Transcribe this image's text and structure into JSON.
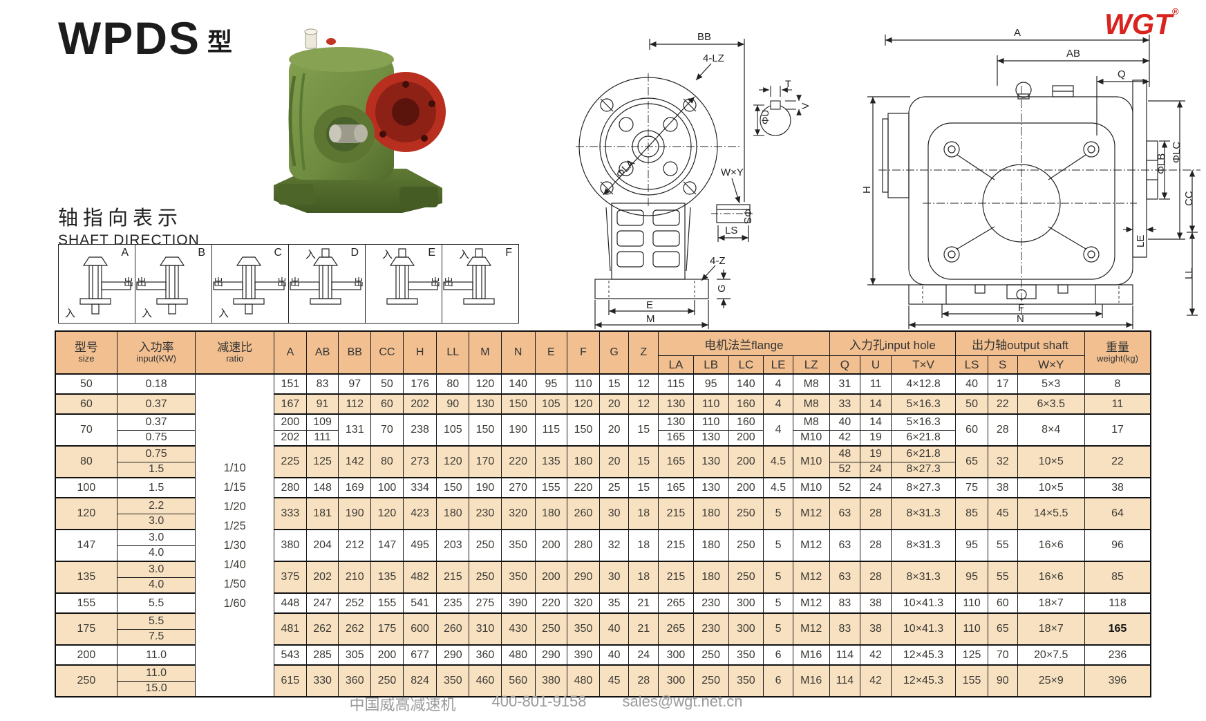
{
  "page": {
    "title": "WPDS",
    "title_suffix": "型",
    "logo_text": "WGT",
    "logo_reg": "®"
  },
  "colors": {
    "brand_red": "#d8231f",
    "table_header_bg": "#f1bf90",
    "table_row_shade": "#f8e1c1",
    "drawing_line": "#222222",
    "photo_body_green": "#6e8b3f",
    "photo_flange_red": "#b92f1f",
    "footer_gray": "#9a9a9a"
  },
  "shaft_direction": {
    "heading_cn": "轴指向表示",
    "heading_en": "SHAFT DIRECTION",
    "in_char": "入",
    "out_char": "出",
    "panels": [
      {
        "label": "A",
        "input": "bottom",
        "outputs": [
          "right"
        ]
      },
      {
        "label": "B",
        "input": "bottom",
        "outputs": [
          "left"
        ]
      },
      {
        "label": "C",
        "input": "bottom",
        "outputs": [
          "left",
          "right"
        ]
      },
      {
        "label": "D",
        "input": "top",
        "outputs": [
          "left",
          "right"
        ]
      },
      {
        "label": "E",
        "input": "top",
        "outputs": [
          "right"
        ]
      },
      {
        "label": "F",
        "input": "top",
        "outputs": [
          "left"
        ]
      }
    ]
  },
  "drawings": {
    "front": {
      "bb": "BB",
      "lz4": "4-LZ",
      "la": "ΦLA",
      "wy": "W×Y",
      "s": "ΦS",
      "ls": "LS",
      "z4": "4-Z",
      "g": "G",
      "e": "E",
      "m": "M"
    },
    "detail": {
      "t": "T",
      "v": "V",
      "u": "ΦU"
    },
    "side": {
      "a": "A",
      "ab": "AB",
      "q": "Q",
      "h": "H",
      "lb": "ΦLB",
      "lc": "ΦLC",
      "le": "LE",
      "cc": "CC",
      "ll": "LL",
      "f": "F",
      "n": "N"
    }
  },
  "table": {
    "headers": {
      "size_cn": "型号",
      "size_en": "size",
      "power_cn": "入功率",
      "power_en": "input(KW)",
      "ratio_cn": "减速比",
      "ratio_en": "ratio",
      "dims": [
        "A",
        "AB",
        "BB",
        "CC",
        "H",
        "LL",
        "M",
        "N",
        "E",
        "F",
        "G",
        "Z"
      ],
      "flange_group": "电机法兰flange",
      "flange_cols": [
        "LA",
        "LB",
        "LC",
        "LE",
        "LZ"
      ],
      "input_group": "入力孔input hole",
      "input_cols": [
        "Q",
        "U",
        "T×V"
      ],
      "output_group": "出力轴output shaft",
      "output_cols": [
        "LS",
        "S",
        "W×Y"
      ],
      "weight_cn": "重量",
      "weight_en": "weight(kg)"
    },
    "ratio_values": [
      "1/10",
      "1/15",
      "1/20",
      "1/25",
      "1/30",
      "1/40",
      "1/50",
      "1/60"
    ],
    "rows": [
      {
        "shade": false,
        "tall": true,
        "gstart": true,
        "cells": [
          "50",
          "0.18",
          {
            "type": "ratio",
            "rs": 19
          },
          "151",
          "83",
          "97",
          "50",
          "176",
          "80",
          "120",
          "140",
          "95",
          "110",
          "15",
          "12",
          "115",
          "95",
          "140",
          "4",
          "M8",
          "31",
          "11",
          "4×12.8",
          "40",
          "17",
          "5×3",
          "8"
        ]
      },
      {
        "shade": true,
        "tall": true,
        "gstart": true,
        "cells": [
          "60",
          "0.37",
          "167",
          "91",
          "112",
          "60",
          "202",
          "90",
          "130",
          "150",
          "105",
          "120",
          "20",
          "12",
          "130",
          "110",
          "160",
          "4",
          "M8",
          "33",
          "14",
          "5×16.3",
          "50",
          "22",
          "6×3.5",
          "11"
        ]
      },
      {
        "shade": false,
        "gstart": true,
        "cells": [
          {
            "v": "70",
            "rs": 2
          },
          "0.37",
          "200",
          "109",
          {
            "v": "131",
            "rs": 2
          },
          {
            "v": "70",
            "rs": 2
          },
          {
            "v": "238",
            "rs": 2
          },
          {
            "v": "105",
            "rs": 2
          },
          {
            "v": "150",
            "rs": 2
          },
          {
            "v": "190",
            "rs": 2
          },
          {
            "v": "115",
            "rs": 2
          },
          {
            "v": "150",
            "rs": 2
          },
          {
            "v": "20",
            "rs": 2
          },
          {
            "v": "15",
            "rs": 2
          },
          "130",
          "110",
          "160",
          {
            "v": "4",
            "rs": 2
          },
          "M8",
          "40",
          "14",
          "5×16.3",
          {
            "v": "60",
            "rs": 2
          },
          {
            "v": "28",
            "rs": 2
          },
          {
            "v": "8×4",
            "rs": 2
          },
          {
            "v": "17",
            "rs": 2
          }
        ]
      },
      {
        "shade": false,
        "cells": [
          "0.75",
          "202",
          "111",
          "165",
          "130",
          "200",
          "M10",
          "42",
          "19",
          "6×21.8"
        ]
      },
      {
        "shade": true,
        "gstart": true,
        "cells": [
          {
            "v": "80",
            "rs": 2
          },
          "0.75",
          {
            "v": "225",
            "rs": 2
          },
          {
            "v": "125",
            "rs": 2
          },
          {
            "v": "142",
            "rs": 2
          },
          {
            "v": "80",
            "rs": 2
          },
          {
            "v": "273",
            "rs": 2
          },
          {
            "v": "120",
            "rs": 2
          },
          {
            "v": "170",
            "rs": 2
          },
          {
            "v": "220",
            "rs": 2
          },
          {
            "v": "135",
            "rs": 2
          },
          {
            "v": "180",
            "rs": 2
          },
          {
            "v": "20",
            "rs": 2
          },
          {
            "v": "15",
            "rs": 2
          },
          {
            "v": "165",
            "rs": 2
          },
          {
            "v": "130",
            "rs": 2
          },
          {
            "v": "200",
            "rs": 2
          },
          {
            "v": "4.5",
            "rs": 2
          },
          {
            "v": "M10",
            "rs": 2
          },
          "48",
          "19",
          "6×21.8",
          {
            "v": "65",
            "rs": 2
          },
          {
            "v": "32",
            "rs": 2
          },
          {
            "v": "10×5",
            "rs": 2
          },
          {
            "v": "22",
            "rs": 2
          }
        ]
      },
      {
        "shade": true,
        "cells": [
          "1.5",
          "52",
          "24",
          "8×27.3"
        ]
      },
      {
        "shade": false,
        "tall": true,
        "gstart": true,
        "cells": [
          "100",
          "1.5",
          "280",
          "148",
          "169",
          "100",
          "334",
          "150",
          "190",
          "270",
          "155",
          "220",
          "25",
          "15",
          "165",
          "130",
          "200",
          "4.5",
          "M10",
          "52",
          "24",
          "8×27.3",
          "75",
          "38",
          "10×5",
          "38"
        ]
      },
      {
        "shade": true,
        "gstart": true,
        "cells": [
          {
            "v": "120",
            "rs": 2
          },
          "2.2",
          {
            "v": "333",
            "rs": 2
          },
          {
            "v": "181",
            "rs": 2
          },
          {
            "v": "190",
            "rs": 2
          },
          {
            "v": "120",
            "rs": 2
          },
          {
            "v": "423",
            "rs": 2
          },
          {
            "v": "180",
            "rs": 2
          },
          {
            "v": "230",
            "rs": 2
          },
          {
            "v": "320",
            "rs": 2
          },
          {
            "v": "180",
            "rs": 2
          },
          {
            "v": "260",
            "rs": 2
          },
          {
            "v": "30",
            "rs": 2
          },
          {
            "v": "18",
            "rs": 2
          },
          {
            "v": "215",
            "rs": 2
          },
          {
            "v": "180",
            "rs": 2
          },
          {
            "v": "250",
            "rs": 2
          },
          {
            "v": "5",
            "rs": 2
          },
          {
            "v": "M12",
            "rs": 2
          },
          {
            "v": "63",
            "rs": 2
          },
          {
            "v": "28",
            "rs": 2
          },
          {
            "v": "8×31.3",
            "rs": 2
          },
          {
            "v": "85",
            "rs": 2
          },
          {
            "v": "45",
            "rs": 2
          },
          {
            "v": "14×5.5",
            "rs": 2
          },
          {
            "v": "64",
            "rs": 2
          }
        ]
      },
      {
        "shade": true,
        "cells": [
          "3.0"
        ]
      },
      {
        "shade": false,
        "gstart": true,
        "cells": [
          {
            "v": "147",
            "rs": 2
          },
          "3.0",
          {
            "v": "380",
            "rs": 2
          },
          {
            "v": "204",
            "rs": 2
          },
          {
            "v": "212",
            "rs": 2
          },
          {
            "v": "147",
            "rs": 2
          },
          {
            "v": "495",
            "rs": 2
          },
          {
            "v": "203",
            "rs": 2
          },
          {
            "v": "250",
            "rs": 2
          },
          {
            "v": "350",
            "rs": 2
          },
          {
            "v": "200",
            "rs": 2
          },
          {
            "v": "280",
            "rs": 2
          },
          {
            "v": "32",
            "rs": 2
          },
          {
            "v": "18",
            "rs": 2
          },
          {
            "v": "215",
            "rs": 2
          },
          {
            "v": "180",
            "rs": 2
          },
          {
            "v": "250",
            "rs": 2
          },
          {
            "v": "5",
            "rs": 2
          },
          {
            "v": "M12",
            "rs": 2
          },
          {
            "v": "63",
            "rs": 2
          },
          {
            "v": "28",
            "rs": 2
          },
          {
            "v": "8×31.3",
            "rs": 2
          },
          {
            "v": "95",
            "rs": 2
          },
          {
            "v": "55",
            "rs": 2
          },
          {
            "v": "16×6",
            "rs": 2
          },
          {
            "v": "96",
            "rs": 2
          }
        ]
      },
      {
        "shade": false,
        "cells": [
          "4.0"
        ]
      },
      {
        "shade": true,
        "gstart": true,
        "cells": [
          {
            "v": "135",
            "rs": 2
          },
          "3.0",
          {
            "v": "375",
            "rs": 2
          },
          {
            "v": "202",
            "rs": 2
          },
          {
            "v": "210",
            "rs": 2
          },
          {
            "v": "135",
            "rs": 2
          },
          {
            "v": "482",
            "rs": 2
          },
          {
            "v": "215",
            "rs": 2
          },
          {
            "v": "250",
            "rs": 2
          },
          {
            "v": "350",
            "rs": 2
          },
          {
            "v": "200",
            "rs": 2
          },
          {
            "v": "290",
            "rs": 2
          },
          {
            "v": "30",
            "rs": 2
          },
          {
            "v": "18",
            "rs": 2
          },
          {
            "v": "215",
            "rs": 2
          },
          {
            "v": "180",
            "rs": 2
          },
          {
            "v": "250",
            "rs": 2
          },
          {
            "v": "5",
            "rs": 2
          },
          {
            "v": "M12",
            "rs": 2
          },
          {
            "v": "63",
            "rs": 2
          },
          {
            "v": "28",
            "rs": 2
          },
          {
            "v": "8×31.3",
            "rs": 2
          },
          {
            "v": "95",
            "rs": 2
          },
          {
            "v": "55",
            "rs": 2
          },
          {
            "v": "16×6",
            "rs": 2
          },
          {
            "v": "85",
            "rs": 2
          }
        ]
      },
      {
        "shade": true,
        "cells": [
          "4.0"
        ]
      },
      {
        "shade": false,
        "tall": true,
        "gstart": true,
        "cells": [
          "155",
          "5.5",
          "448",
          "247",
          "252",
          "155",
          "541",
          "235",
          "275",
          "390",
          "220",
          "320",
          "35",
          "21",
          "265",
          "230",
          "300",
          "5",
          "M12",
          "83",
          "38",
          "10×41.3",
          "110",
          "60",
          "18×7",
          "118"
        ]
      },
      {
        "shade": true,
        "gstart": true,
        "cells": [
          {
            "v": "175",
            "rs": 2
          },
          "5.5",
          {
            "v": "481",
            "rs": 2
          },
          {
            "v": "262",
            "rs": 2
          },
          {
            "v": "262",
            "rs": 2
          },
          {
            "v": "175",
            "rs": 2
          },
          {
            "v": "600",
            "rs": 2
          },
          {
            "v": "260",
            "rs": 2
          },
          {
            "v": "310",
            "rs": 2
          },
          {
            "v": "430",
            "rs": 2
          },
          {
            "v": "250",
            "rs": 2
          },
          {
            "v": "350",
            "rs": 2
          },
          {
            "v": "40",
            "rs": 2
          },
          {
            "v": "21",
            "rs": 2
          },
          {
            "v": "265",
            "rs": 2
          },
          {
            "v": "230",
            "rs": 2
          },
          {
            "v": "300",
            "rs": 2
          },
          {
            "v": "5",
            "rs": 2
          },
          {
            "v": "M12",
            "rs": 2
          },
          {
            "v": "83",
            "rs": 2
          },
          {
            "v": "38",
            "rs": 2
          },
          {
            "v": "10×41.3",
            "rs": 2
          },
          {
            "v": "110",
            "rs": 2
          },
          {
            "v": "65",
            "rs": 2
          },
          {
            "v": "18×7",
            "rs": 2
          },
          {
            "v": "165",
            "rs": 2,
            "b": true
          }
        ]
      },
      {
        "shade": true,
        "cells": [
          "7.5"
        ]
      },
      {
        "shade": false,
        "tall": true,
        "gstart": true,
        "cells": [
          "200",
          "11.0",
          "543",
          "285",
          "305",
          "200",
          "677",
          "290",
          "360",
          "480",
          "290",
          "390",
          "40",
          "24",
          "300",
          "250",
          "350",
          "6",
          "M16",
          "114",
          "42",
          "12×45.3",
          "125",
          "70",
          "20×7.5",
          "236"
        ]
      },
      {
        "shade": true,
        "gstart": true,
        "cells": [
          {
            "v": "250",
            "rs": 2
          },
          "11.0",
          {
            "v": "615",
            "rs": 2
          },
          {
            "v": "330",
            "rs": 2
          },
          {
            "v": "360",
            "rs": 2
          },
          {
            "v": "250",
            "rs": 2
          },
          {
            "v": "824",
            "rs": 2
          },
          {
            "v": "350",
            "rs": 2
          },
          {
            "v": "460",
            "rs": 2
          },
          {
            "v": "560",
            "rs": 2
          },
          {
            "v": "380",
            "rs": 2
          },
          {
            "v": "480",
            "rs": 2
          },
          {
            "v": "45",
            "rs": 2
          },
          {
            "v": "28",
            "rs": 2
          },
          {
            "v": "300",
            "rs": 2
          },
          {
            "v": "250",
            "rs": 2
          },
          {
            "v": "350",
            "rs": 2
          },
          {
            "v": "6",
            "rs": 2
          },
          {
            "v": "M16",
            "rs": 2
          },
          {
            "v": "114",
            "rs": 2
          },
          {
            "v": "42",
            "rs": 2
          },
          {
            "v": "12×45.3",
            "rs": 2
          },
          {
            "v": "155",
            "rs": 2
          },
          {
            "v": "90",
            "rs": 2
          },
          {
            "v": "25×9",
            "rs": 2
          },
          {
            "v": "396",
            "rs": 2
          }
        ]
      },
      {
        "shade": true,
        "cells": [
          "15.0"
        ]
      }
    ]
  },
  "footer": {
    "company": "中国威高减速机",
    "phone": "400-801-9158",
    "email": "sales@wgt.net.cn"
  }
}
